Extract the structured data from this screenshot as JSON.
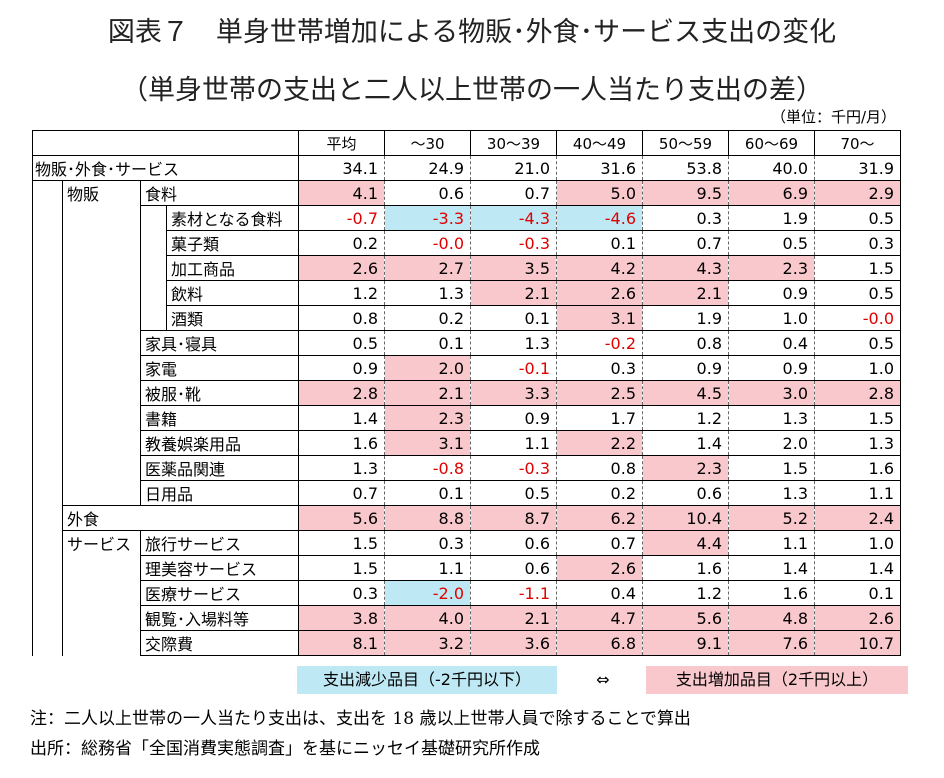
{
  "title_line1": "図表７　単身世帯増加による物販･外食･サービス支出の変化",
  "title_line2": "（単身世帯の支出と二人以上世帯の一人当たり支出の差）",
  "unit": "（単位：千円/月）",
  "columns": [
    "平均",
    "～30",
    "30～39",
    "40～49",
    "50～59",
    "60～69",
    "70～"
  ],
  "colors": {
    "increase": "#f8c8cc",
    "decrease": "#bde8f4",
    "negative_text": "#e00000"
  },
  "rows": [
    {
      "l1": "物販･外食･サービス",
      "l2": "",
      "l3": "",
      "level": 0,
      "values": [
        "34.1",
        "24.9",
        "21.0",
        "31.6",
        "53.8",
        "40.0",
        "31.9"
      ],
      "highlight": [
        "",
        "",
        "",
        "",
        "",
        "",
        ""
      ]
    },
    {
      "l1": "",
      "l2": "物販",
      "l3": "食料",
      "level": 2,
      "values": [
        "4.1",
        "0.6",
        "0.7",
        "5.0",
        "9.5",
        "6.9",
        "2.9"
      ],
      "highlight": [
        "pos",
        "",
        "",
        "pos",
        "pos",
        "pos",
        "pos"
      ]
    },
    {
      "l1": "",
      "l2": "",
      "l3": "素材となる食料",
      "level": 3,
      "values": [
        "-0.7",
        "-3.3",
        "-4.3",
        "-4.6",
        "0.3",
        "1.9",
        "0.5"
      ],
      "highlight": [
        "",
        "neg",
        "neg",
        "neg",
        "",
        "",
        ""
      ]
    },
    {
      "l1": "",
      "l2": "",
      "l3": "菓子類",
      "level": 3,
      "values": [
        "0.2",
        "-0.0",
        "-0.3",
        "0.1",
        "0.7",
        "0.5",
        "0.3"
      ],
      "highlight": [
        "",
        "",
        "",
        "",
        "",
        "",
        ""
      ]
    },
    {
      "l1": "",
      "l2": "",
      "l3": "加工商品",
      "level": 3,
      "values": [
        "2.6",
        "2.7",
        "3.5",
        "4.2",
        "4.3",
        "2.3",
        "1.5"
      ],
      "highlight": [
        "pos",
        "pos",
        "pos",
        "pos",
        "pos",
        "pos",
        ""
      ]
    },
    {
      "l1": "",
      "l2": "",
      "l3": "飲料",
      "level": 3,
      "values": [
        "1.2",
        "1.3",
        "2.1",
        "2.6",
        "2.1",
        "0.9",
        "0.5"
      ],
      "highlight": [
        "",
        "",
        "pos",
        "pos",
        "pos",
        "",
        ""
      ]
    },
    {
      "l1": "",
      "l2": "",
      "l3": "酒類",
      "level": 3,
      "values": [
        "0.8",
        "0.2",
        "0.1",
        "3.1",
        "1.9",
        "1.0",
        "-0.0"
      ],
      "highlight": [
        "",
        "",
        "",
        "pos",
        "",
        "",
        ""
      ]
    },
    {
      "l1": "",
      "l2": "",
      "l3": "家具･寝具",
      "level": 2,
      "values": [
        "0.5",
        "0.1",
        "1.3",
        "-0.2",
        "0.8",
        "0.4",
        "0.5"
      ],
      "highlight": [
        "",
        "",
        "",
        "",
        "",
        "",
        ""
      ]
    },
    {
      "l1": "",
      "l2": "",
      "l3": "家電",
      "level": 2,
      "values": [
        "0.9",
        "2.0",
        "-0.1",
        "0.3",
        "0.9",
        "0.9",
        "1.0"
      ],
      "highlight": [
        "",
        "pos",
        "",
        "",
        "",
        "",
        ""
      ]
    },
    {
      "l1": "",
      "l2": "",
      "l3": "被服･靴",
      "level": 2,
      "values": [
        "2.8",
        "2.1",
        "3.3",
        "2.5",
        "4.5",
        "3.0",
        "2.8"
      ],
      "highlight": [
        "pos",
        "pos",
        "pos",
        "pos",
        "pos",
        "pos",
        "pos"
      ]
    },
    {
      "l1": "",
      "l2": "",
      "l3": "書籍",
      "level": 2,
      "values": [
        "1.4",
        "2.3",
        "0.9",
        "1.7",
        "1.2",
        "1.3",
        "1.5"
      ],
      "highlight": [
        "",
        "pos",
        "",
        "",
        "",
        "",
        ""
      ]
    },
    {
      "l1": "",
      "l2": "",
      "l3": "教養娯楽用品",
      "level": 2,
      "values": [
        "1.6",
        "3.1",
        "1.1",
        "2.2",
        "1.4",
        "2.0",
        "1.3"
      ],
      "highlight": [
        "",
        "pos",
        "",
        "pos",
        "",
        "",
        ""
      ]
    },
    {
      "l1": "",
      "l2": "",
      "l3": "医薬品関連",
      "level": 2,
      "values": [
        "1.3",
        "-0.8",
        "-0.3",
        "0.8",
        "2.3",
        "1.5",
        "1.6"
      ],
      "highlight": [
        "",
        "",
        "",
        "",
        "pos",
        "",
        ""
      ]
    },
    {
      "l1": "",
      "l2": "",
      "l3": "日用品",
      "level": 2,
      "values": [
        "0.7",
        "0.1",
        "0.5",
        "0.2",
        "0.6",
        "1.3",
        "1.1"
      ],
      "highlight": [
        "",
        "",
        "",
        "",
        "",
        "",
        ""
      ]
    },
    {
      "l1": "",
      "l2": "外食",
      "l3": "",
      "level": 1,
      "values": [
        "5.6",
        "8.8",
        "8.7",
        "6.2",
        "10.4",
        "5.2",
        "2.4"
      ],
      "highlight": [
        "pos",
        "pos",
        "pos",
        "pos",
        "pos",
        "pos",
        "pos"
      ]
    },
    {
      "l1": "",
      "l2": "サービス",
      "l3": "旅行サービス",
      "level": 2,
      "values": [
        "1.5",
        "0.3",
        "0.6",
        "0.7",
        "4.4",
        "1.1",
        "1.0"
      ],
      "highlight": [
        "",
        "",
        "",
        "",
        "pos",
        "",
        ""
      ]
    },
    {
      "l1": "",
      "l2": "",
      "l3": "理美容サービス",
      "level": 2,
      "values": [
        "1.5",
        "1.1",
        "0.6",
        "2.6",
        "1.6",
        "1.4",
        "1.4"
      ],
      "highlight": [
        "",
        "",
        "",
        "pos",
        "",
        "",
        ""
      ]
    },
    {
      "l1": "",
      "l2": "",
      "l3": "医療サービス",
      "level": 2,
      "values": [
        "0.3",
        "-2.0",
        "-1.1",
        "0.4",
        "1.2",
        "1.6",
        "0.1"
      ],
      "highlight": [
        "",
        "neg",
        "",
        "",
        "",
        "",
        ""
      ]
    },
    {
      "l1": "",
      "l2": "",
      "l3": "観覧･入場料等",
      "level": 2,
      "values": [
        "3.8",
        "4.0",
        "2.1",
        "4.7",
        "5.6",
        "4.8",
        "2.6"
      ],
      "highlight": [
        "pos",
        "pos",
        "pos",
        "pos",
        "pos",
        "pos",
        "pos"
      ]
    },
    {
      "l1": "",
      "l2": "",
      "l3": "交際費",
      "level": 2,
      "values": [
        "8.1",
        "3.2",
        "3.6",
        "6.8",
        "9.1",
        "7.6",
        "10.7"
      ],
      "highlight": [
        "pos",
        "pos",
        "pos",
        "pos",
        "pos",
        "pos",
        "pos"
      ]
    }
  ],
  "legend": {
    "decrease_label": "支出減少品目（-2千円以下）",
    "arrow": "⇔",
    "increase_label": "支出増加品目（2千円以上）"
  },
  "notes": [
    "注：二人以上世帯の一人当たり支出は、支出を 18 歳以上世帯人員で除することで算出",
    "出所：総務省「全国消費実態調査」を基にニッセイ基礎研究所作成"
  ]
}
